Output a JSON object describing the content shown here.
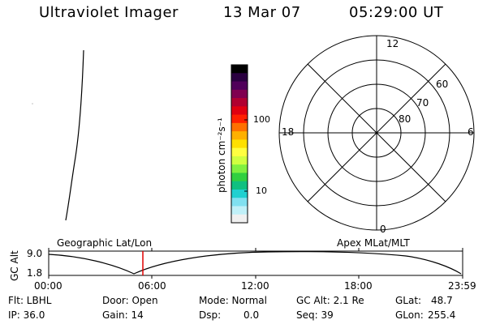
{
  "header": {
    "instrument": "Ultraviolet Imager",
    "date": "13 Mar 07",
    "time": "05:29:00 UT"
  },
  "colorbar": {
    "unit_label": "photon cm⁻²s⁻¹",
    "ticks": [
      {
        "label": "100",
        "value": 100
      },
      {
        "label": "10",
        "value": 10
      }
    ],
    "colors": [
      "#000000",
      "#2a0040",
      "#50005a",
      "#800050",
      "#b00030",
      "#e00010",
      "#ff2000",
      "#ff7000",
      "#ffb000",
      "#ffe000",
      "#ffff40",
      "#d0ff40",
      "#80f040",
      "#30d040",
      "#10c080",
      "#20d0d0",
      "#80e0f0",
      "#c0f0f8",
      "#f0f0f0"
    ]
  },
  "polar": {
    "mlt_labels": {
      "top": "12",
      "left": "18",
      "right": "6",
      "bottom": "0"
    },
    "lat_labels": [
      "60",
      "70",
      "80"
    ]
  },
  "timeline": {
    "ylabel": "GC Alt",
    "ymax": "9.0",
    "ymin": "1.8",
    "left_caption": "Geographic Lat/Lon",
    "right_caption": "Apex MLat/MLT",
    "xticks": [
      "00:00",
      "06:00",
      "12:00",
      "18:00",
      "23:59"
    ],
    "current_marker_time": "05:29"
  },
  "info": {
    "filter": "Flt: LBHL",
    "ip": "IP: 36.0",
    "door": "Door: Open",
    "gain": "Gain: 14",
    "mode": "Mode: Normal",
    "dsp_label": "Dsp:",
    "dsp_value": "0.0",
    "gc_alt": "GC Alt: 2.1 Re",
    "seq": "Seq: 39",
    "glat_label": "GLat:",
    "glat_value": "48.7",
    "glon_label": "GLon:",
    "glon_value": "255.4"
  }
}
